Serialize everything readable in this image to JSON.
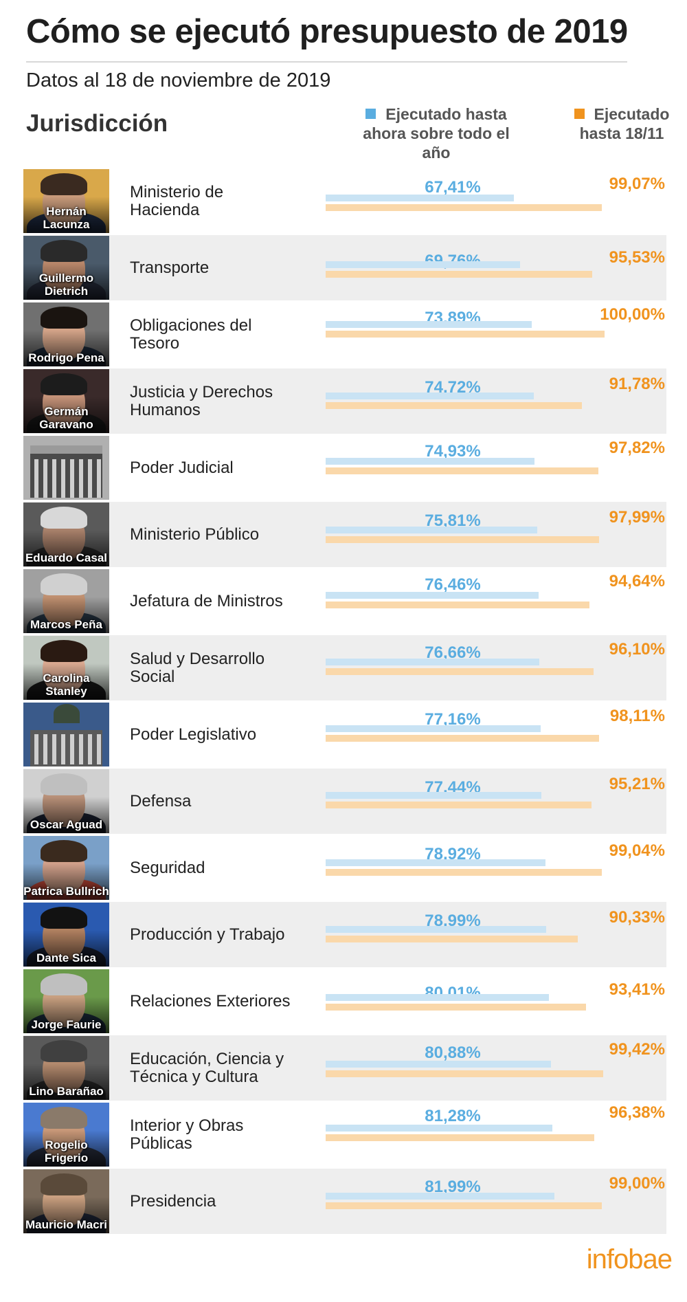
{
  "title": "Cómo se ejecutó presupuesto de 2019",
  "subtitle": "Datos al 18 de noviembre de 2019",
  "column_header": "Jurisdicción",
  "legend": {
    "blue_label": "Ejecutado hasta ahora sobre todo el año",
    "orange_label": "Ejecutado hasta 18/11",
    "blue_color": "#5aade0",
    "orange_color": "#f0931e"
  },
  "logo": "infobae",
  "chart_data": {
    "type": "bar",
    "orientation": "horizontal",
    "categories": [
      "Ministerio de Hacienda",
      "Transporte",
      "Obligaciones del Tesoro",
      "Justicia y Derechos Humanos",
      "Poder Judicial",
      "Ministerio Público",
      "Jefatura de Ministros",
      "Salud y Desarrollo Social",
      "Poder Legislativo",
      "Defensa",
      "Seguridad",
      "Producción y Trabajo",
      "Relaciones Exteriores",
      "Educación, Ciencia y Técnica y Cultura",
      "Interior y Obras Públicas",
      "Presidencia"
    ],
    "series": [
      {
        "name": "Ejecutado hasta ahora sobre todo el año",
        "color": "#5aade0",
        "values": [
          67.41,
          69.76,
          73.89,
          74.72,
          74.93,
          75.81,
          76.46,
          76.66,
          77.16,
          77.44,
          78.92,
          78.99,
          80.01,
          80.88,
          81.28,
          81.99
        ],
        "labels": [
          "67,41%",
          "69,76%",
          "73,89%",
          "74,72%",
          "74,93%",
          "75,81%",
          "76,46%",
          "76,66%",
          "77,16%",
          "77,44%",
          "78,92%",
          "78,99%",
          "80,01%",
          "80,88%",
          "81,28%",
          "81,99%"
        ]
      },
      {
        "name": "Ejecutado hasta 18/11",
        "color": "#f0931e",
        "values": [
          99.07,
          95.53,
          100.0,
          91.78,
          97.82,
          97.99,
          94.64,
          96.1,
          98.11,
          95.21,
          99.04,
          90.33,
          93.41,
          99.42,
          96.38,
          99.0
        ],
        "labels": [
          "99,07%",
          "95,53%",
          "100,00%",
          "91,78%",
          "97,82%",
          "97,99%",
          "94,64%",
          "96,10%",
          "98,11%",
          "95,21%",
          "99,04%",
          "90,33%",
          "93,41%",
          "99,42%",
          "96,38%",
          "99,00%"
        ]
      }
    ],
    "xlim": [
      0,
      100
    ],
    "grid": false,
    "legend_position": "top-right"
  },
  "rows": [
    {
      "label": "Ministerio de Hacienda",
      "photo_caption": "Hernán Lacunza",
      "blue": "67,41%",
      "orange": "99,07%"
    },
    {
      "label": "Transporte",
      "photo_caption": "Guillermo Dietrich",
      "blue": "69,76%",
      "orange": "95,53%"
    },
    {
      "label": "Obligaciones del Tesoro",
      "photo_caption": "Rodrigo Pena",
      "blue": "73,89%",
      "orange": "100,00%"
    },
    {
      "label": "Justicia y Derechos Humanos",
      "photo_caption": "Germán Garavano",
      "blue": "74,72%",
      "orange": "91,78%"
    },
    {
      "label": "Poder Judicial",
      "photo_caption": "",
      "photo_icon": "courthouse-photo",
      "blue": "74,93%",
      "orange": "97,82%"
    },
    {
      "label": "Ministerio Público",
      "photo_caption": "Eduardo Casal",
      "blue": "75,81%",
      "orange": "97,99%"
    },
    {
      "label": "Jefatura de Ministros",
      "photo_caption": "Marcos Peña",
      "blue": "76,46%",
      "orange": "94,64%"
    },
    {
      "label": "Salud y Desarrollo Social",
      "photo_caption": "Carolina Stanley",
      "blue": "76,66%",
      "orange": "96,10%"
    },
    {
      "label": "Poder Legislativo",
      "photo_caption": "",
      "photo_icon": "congress-photo",
      "blue": "77,16%",
      "orange": "98,11%"
    },
    {
      "label": "Defensa",
      "photo_caption": "Oscar Aguad",
      "blue": "77,44%",
      "orange": "95,21%"
    },
    {
      "label": "Seguridad",
      "photo_caption": "Patrica Bullrich",
      "blue": "78,92%",
      "orange": "99,04%"
    },
    {
      "label": "Producción y Trabajo",
      "photo_caption": "Dante Sica",
      "blue": "78,99%",
      "orange": "90,33%"
    },
    {
      "label": "Relaciones Exteriores",
      "photo_caption": "Jorge Faurie",
      "blue": "80,01%",
      "orange": "93,41%"
    },
    {
      "label": "Educación, Ciencia y Técnica y Cultura",
      "photo_caption": "Lino Barañao",
      "blue": "80,88%",
      "orange": "99,42%"
    },
    {
      "label": "Interior y Obras Públicas",
      "photo_caption": "Rogelio Frigerio",
      "blue": "81,28%",
      "orange": "96,38%"
    },
    {
      "label": "Presidencia",
      "photo_caption": "Mauricio Macri",
      "blue": "81,99%",
      "orange": "99,00%"
    }
  ]
}
